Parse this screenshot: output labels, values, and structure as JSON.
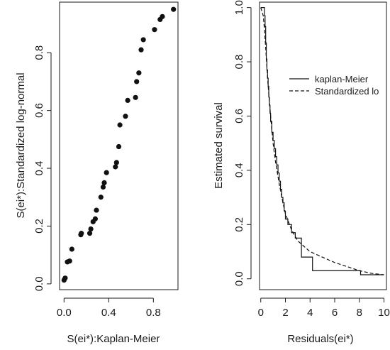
{
  "chart_data": [
    {
      "type": "scatter",
      "xlabel": "S(ei*):Kaplan-Meier",
      "ylabel": "S(ei*):Standardized log-normal",
      "xlim": [
        -0.04,
        1.02
      ],
      "ylim": [
        -0.02,
        0.975
      ],
      "xticks": [
        0.0,
        0.4,
        0.8
      ],
      "xtick_labels": [
        "0.0",
        "0.4",
        "0.8"
      ],
      "yticks": [
        0.0,
        0.2,
        0.4,
        0.6,
        0.8
      ],
      "ytick_labels": [
        "0.0",
        "0.2",
        "0.4",
        "0.6",
        "0.8"
      ],
      "grid": false,
      "point_color": "#111111",
      "points": [
        {
          "x": 0.0,
          "y": 0.013
        },
        {
          "x": 0.01,
          "y": 0.02
        },
        {
          "x": 0.03,
          "y": 0.076
        },
        {
          "x": 0.05,
          "y": 0.079
        },
        {
          "x": 0.07,
          "y": 0.12
        },
        {
          "x": 0.15,
          "y": 0.17
        },
        {
          "x": 0.155,
          "y": 0.175
        },
        {
          "x": 0.23,
          "y": 0.175
        },
        {
          "x": 0.24,
          "y": 0.19
        },
        {
          "x": 0.26,
          "y": 0.215
        },
        {
          "x": 0.28,
          "y": 0.225
        },
        {
          "x": 0.29,
          "y": 0.255
        },
        {
          "x": 0.33,
          "y": 0.3
        },
        {
          "x": 0.35,
          "y": 0.335
        },
        {
          "x": 0.36,
          "y": 0.35
        },
        {
          "x": 0.38,
          "y": 0.385
        },
        {
          "x": 0.46,
          "y": 0.405
        },
        {
          "x": 0.47,
          "y": 0.42
        },
        {
          "x": 0.49,
          "y": 0.475
        },
        {
          "x": 0.5,
          "y": 0.55
        },
        {
          "x": 0.55,
          "y": 0.58
        },
        {
          "x": 0.57,
          "y": 0.635
        },
        {
          "x": 0.64,
          "y": 0.645
        },
        {
          "x": 0.65,
          "y": 0.7
        },
        {
          "x": 0.67,
          "y": 0.73
        },
        {
          "x": 0.69,
          "y": 0.81
        },
        {
          "x": 0.71,
          "y": 0.845
        },
        {
          "x": 0.81,
          "y": 0.88
        },
        {
          "x": 0.86,
          "y": 0.915
        },
        {
          "x": 0.88,
          "y": 0.925
        },
        {
          "x": 0.98,
          "y": 0.95
        }
      ]
    },
    {
      "type": "line",
      "xlabel": "Residuals(ei*)",
      "ylabel": "Estimated survival",
      "xlim": [
        -0.1,
        10.2
      ],
      "ylim": [
        -0.04,
        1.02
      ],
      "xticks": [
        0,
        2,
        4,
        6,
        8,
        10
      ],
      "xtick_labels": [
        "0",
        "2",
        "4",
        "6",
        "8",
        "10"
      ],
      "yticks": [
        0.0,
        0.2,
        0.4,
        0.6,
        0.8,
        1.0
      ],
      "ytick_labels": [
        "0.0",
        "0.2",
        "0.4",
        "0.6",
        "0.8",
        "1.0"
      ],
      "grid": false,
      "legend_position": "top-right",
      "series": [
        {
          "name": "kaplan-Meier",
          "style": "solid",
          "color": "#111111",
          "step": true,
          "x": [
            0,
            0.3,
            0.35,
            0.4,
            0.45,
            0.5,
            0.55,
            0.6,
            0.65,
            0.7,
            0.75,
            0.8,
            0.9,
            1.0,
            1.1,
            1.2,
            1.3,
            1.4,
            1.5,
            1.6,
            1.7,
            1.8,
            1.9,
            2.0,
            2.2,
            2.5,
            2.8,
            3.3,
            3.9,
            4.2,
            8.1,
            10.0
          ],
          "y": [
            1.0,
            0.97,
            0.93,
            0.87,
            0.81,
            0.77,
            0.74,
            0.71,
            0.67,
            0.64,
            0.61,
            0.58,
            0.54,
            0.51,
            0.48,
            0.45,
            0.42,
            0.39,
            0.36,
            0.33,
            0.3,
            0.28,
            0.25,
            0.22,
            0.2,
            0.17,
            0.15,
            0.08,
            0.08,
            0.03,
            0.015,
            0.015
          ]
        },
        {
          "name": "Standardized lo",
          "style": "dashed",
          "color": "#111111",
          "x": [
            0,
            0.2,
            0.3,
            0.4,
            0.5,
            0.6,
            0.8,
            1.0,
            1.2,
            1.5,
            1.8,
            2.0,
            2.5,
            3.0,
            3.5,
            4.0,
            5.0,
            6.0,
            7.0,
            8.0,
            9.0,
            10.0
          ],
          "y": [
            1.0,
            0.97,
            0.92,
            0.85,
            0.78,
            0.71,
            0.6,
            0.5,
            0.43,
            0.35,
            0.28,
            0.24,
            0.18,
            0.14,
            0.12,
            0.1,
            0.08,
            0.06,
            0.045,
            0.03,
            0.02,
            0.015
          ]
        }
      ]
    }
  ]
}
